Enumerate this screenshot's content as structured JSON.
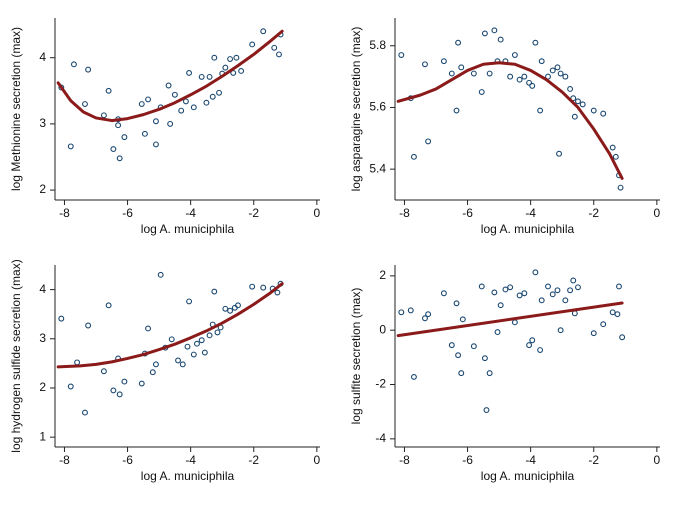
{
  "chart_data": [
    {
      "type": "scatter",
      "x_label": "log A. municiphila",
      "y_label": "log Methionine secretion (max)",
      "xlim": [
        -8.3,
        0.1
      ],
      "xticks": [
        -8,
        -6,
        -4,
        -2,
        0
      ],
      "ylim": [
        1.85,
        4.6
      ],
      "yticks": [
        2,
        3,
        4
      ],
      "series": [
        {
          "type": "scatter",
          "color": "#1a476f",
          "x": [
            -8.1,
            -7.8,
            -7.7,
            -7.35,
            -7.25,
            -6.75,
            -6.6,
            -6.45,
            -6.3,
            -6.25,
            -6.3,
            -6.1,
            -5.55,
            -5.45,
            -5.35,
            -5.1,
            -5.1,
            -4.95,
            -4.7,
            -4.65,
            -4.5,
            -4.3,
            -4.15,
            -4.05,
            -3.9,
            -3.65,
            -3.5,
            -3.4,
            -3.3,
            -3.25,
            -3.1,
            -3.0,
            -2.9,
            -2.75,
            -2.65,
            -2.55,
            -2.4,
            -2.05,
            -1.7,
            -1.35,
            -1.2,
            -1.15
          ],
          "values": [
            3.55,
            2.66,
            3.9,
            3.3,
            3.82,
            3.13,
            3.5,
            2.62,
            2.98,
            2.48,
            3.07,
            2.8,
            3.3,
            2.85,
            3.37,
            3.04,
            2.69,
            3.25,
            3.58,
            3.0,
            3.44,
            3.2,
            3.34,
            3.77,
            3.25,
            3.71,
            3.32,
            3.71,
            3.41,
            4.0,
            3.47,
            3.76,
            3.85,
            3.98,
            3.77,
            4.0,
            3.8,
            4.2,
            4.4,
            4.15,
            4.05,
            4.35
          ]
        },
        {
          "type": "line",
          "color": "#8b1a1a",
          "x": [
            -8.2,
            -7.8,
            -7.4,
            -7,
            -6.5,
            -6,
            -5.5,
            -5,
            -4.5,
            -4,
            -3.5,
            -3,
            -2.5,
            -2,
            -1.5,
            -1.1
          ],
          "values": [
            3.62,
            3.35,
            3.18,
            3.09,
            3.05,
            3.08,
            3.14,
            3.22,
            3.32,
            3.44,
            3.57,
            3.72,
            3.88,
            4.05,
            4.24,
            4.4
          ]
        }
      ]
    },
    {
      "type": "scatter",
      "x_label": "log A. municiphila",
      "y_label": "log asparagine secretion (max)",
      "xlim": [
        -8.3,
        0.1
      ],
      "xticks": [
        -8,
        -6,
        -4,
        -2,
        0
      ],
      "ylim": [
        5.3,
        5.89
      ],
      "yticks": [
        5.4,
        5.6,
        5.8
      ],
      "series": [
        {
          "type": "scatter",
          "color": "#1a476f",
          "x": [
            -8.1,
            -7.8,
            -7.7,
            -7.35,
            -7.25,
            -6.75,
            -6.5,
            -6.35,
            -6.3,
            -6.2,
            -5.8,
            -5.55,
            -5.45,
            -5.3,
            -5.15,
            -5.05,
            -4.95,
            -4.8,
            -4.65,
            -4.5,
            -4.35,
            -4.2,
            -4.05,
            -3.95,
            -3.85,
            -3.7,
            -3.65,
            -3.45,
            -3.3,
            -3.15,
            -3.1,
            -3.05,
            -2.9,
            -2.75,
            -2.65,
            -2.6,
            -2.5,
            -2.35,
            -2.0,
            -1.7,
            -1.4,
            -1.3,
            -1.2,
            -1.15
          ],
          "values": [
            5.77,
            5.63,
            5.44,
            5.74,
            5.49,
            5.75,
            5.71,
            5.59,
            5.81,
            5.73,
            5.71,
            5.65,
            5.84,
            5.71,
            5.85,
            5.75,
            5.82,
            5.75,
            5.7,
            5.77,
            5.69,
            5.7,
            5.68,
            5.67,
            5.81,
            5.59,
            5.75,
            5.7,
            5.72,
            5.73,
            5.45,
            5.71,
            5.7,
            5.66,
            5.63,
            5.57,
            5.62,
            5.61,
            5.59,
            5.58,
            5.47,
            5.44,
            5.38,
            5.34
          ]
        },
        {
          "type": "line",
          "color": "#8b1a1a",
          "x": [
            -8.2,
            -7.5,
            -7,
            -6.5,
            -6,
            -5.5,
            -5,
            -4.5,
            -4,
            -3.5,
            -3,
            -2.5,
            -2,
            -1.5,
            -1.1
          ],
          "values": [
            5.62,
            5.64,
            5.66,
            5.69,
            5.72,
            5.74,
            5.745,
            5.74,
            5.72,
            5.69,
            5.65,
            5.6,
            5.53,
            5.45,
            5.37
          ]
        }
      ]
    },
    {
      "type": "scatter",
      "x_label": "log A. municiphila",
      "y_label": "log hydrogen sulfide secretion (max)",
      "xlim": [
        -8.3,
        0.1
      ],
      "xticks": [
        -8,
        -6,
        -4,
        -2,
        0
      ],
      "ylim": [
        0.8,
        4.5
      ],
      "yticks": [
        1,
        2,
        3,
        4
      ],
      "series": [
        {
          "type": "scatter",
          "color": "#1a476f",
          "x": [
            -8.1,
            -7.8,
            -7.6,
            -7.35,
            -7.25,
            -6.75,
            -6.6,
            -6.45,
            -6.3,
            -6.25,
            -6.1,
            -5.55,
            -5.45,
            -5.35,
            -5.2,
            -5.1,
            -4.95,
            -4.8,
            -4.6,
            -4.4,
            -4.25,
            -4.1,
            -4.05,
            -3.9,
            -3.8,
            -3.65,
            -3.55,
            -3.4,
            -3.3,
            -3.25,
            -3.15,
            -3.05,
            -2.9,
            -2.75,
            -2.6,
            -2.5,
            -2.05,
            -1.7,
            -1.4,
            -1.25,
            -1.15
          ],
          "values": [
            3.41,
            2.03,
            2.52,
            1.5,
            3.27,
            2.34,
            3.68,
            1.95,
            2.6,
            1.87,
            2.13,
            2.09,
            2.7,
            3.21,
            2.32,
            2.48,
            4.3,
            2.82,
            2.99,
            2.56,
            2.48,
            2.84,
            3.76,
            2.68,
            2.9,
            2.97,
            2.72,
            3.07,
            3.29,
            3.96,
            3.13,
            3.23,
            3.61,
            3.57,
            3.63,
            3.68,
            4.06,
            4.04,
            4.02,
            3.94,
            4.12
          ]
        },
        {
          "type": "line",
          "color": "#8b1a1a",
          "x": [
            -8.2,
            -7.5,
            -7,
            -6.5,
            -6,
            -5.5,
            -5,
            -4.5,
            -4,
            -3.5,
            -3,
            -2.5,
            -2,
            -1.5,
            -1.1
          ],
          "values": [
            2.43,
            2.45,
            2.48,
            2.53,
            2.6,
            2.68,
            2.78,
            2.89,
            3.02,
            3.16,
            3.32,
            3.5,
            3.7,
            3.92,
            4.12
          ]
        }
      ]
    },
    {
      "type": "scatter",
      "x_label": "log A. municiphila",
      "y_label": "log sulfite secretion (max)",
      "xlim": [
        -8.3,
        0.1
      ],
      "xticks": [
        -8,
        -6,
        -4,
        -2,
        0
      ],
      "ylim": [
        -4.3,
        2.4
      ],
      "yticks": [
        -4,
        -2,
        0,
        2
      ],
      "series": [
        {
          "type": "scatter",
          "color": "#1a476f",
          "x": [
            -8.1,
            -7.8,
            -7.7,
            -7.35,
            -7.25,
            -6.75,
            -6.5,
            -6.35,
            -6.3,
            -6.2,
            -6.15,
            -5.8,
            -5.55,
            -5.45,
            -5.4,
            -5.3,
            -5.15,
            -5.05,
            -4.95,
            -4.8,
            -4.65,
            -4.5,
            -4.35,
            -4.2,
            -4.05,
            -3.95,
            -3.85,
            -3.7,
            -3.65,
            -3.45,
            -3.3,
            -3.15,
            -3.05,
            -2.9,
            -2.75,
            -2.65,
            -2.6,
            -2.5,
            -2.0,
            -1.7,
            -1.4,
            -1.25,
            -1.2,
            -1.1
          ],
          "values": [
            0.66,
            0.73,
            -1.72,
            0.44,
            0.59,
            1.36,
            -0.55,
            0.99,
            -0.92,
            -1.58,
            0.4,
            -0.59,
            1.61,
            -1.03,
            -2.94,
            -1.58,
            1.39,
            -0.07,
            0.92,
            1.5,
            1.58,
            0.29,
            1.28,
            1.36,
            -0.55,
            -0.37,
            2.13,
            -0.73,
            1.1,
            1.61,
            1.32,
            1.47,
            0.0,
            1.1,
            1.47,
            1.83,
            0.62,
            1.58,
            -0.11,
            0.22,
            0.66,
            0.59,
            1.61,
            -0.26
          ]
        },
        {
          "type": "line",
          "color": "#8b1a1a",
          "x": [
            -8.2,
            -1.1
          ],
          "values": [
            -0.2,
            1.0
          ]
        }
      ]
    }
  ]
}
